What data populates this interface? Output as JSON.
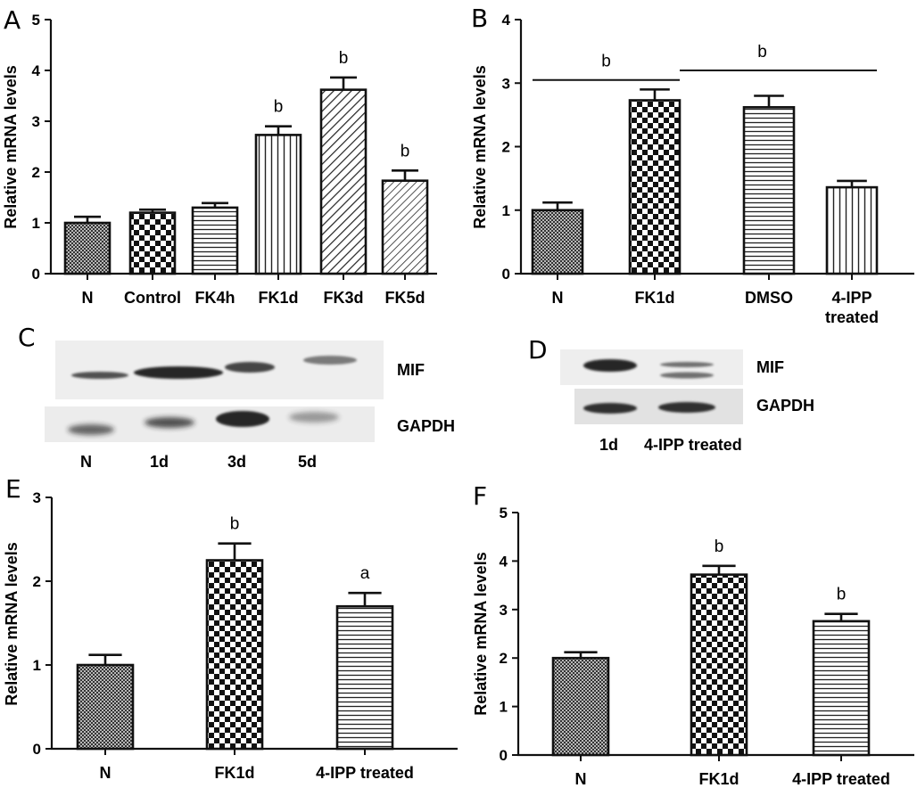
{
  "panels": {
    "A": {
      "letter": "A"
    },
    "B": {
      "letter": "B"
    },
    "C": {
      "letter": "C"
    },
    "D": {
      "letter": "D"
    },
    "E": {
      "letter": "E"
    },
    "F": {
      "letter": "F"
    }
  },
  "blots": {
    "C": {
      "rows": [
        "MIF",
        "GAPDH"
      ],
      "lanes": [
        "N",
        "1d",
        "3d",
        "5d"
      ]
    },
    "D": {
      "rows": [
        "MIF",
        "GAPDH"
      ],
      "lanes": [
        "1d",
        "4-IPP treated"
      ]
    }
  },
  "chart_data": [
    {
      "panel": "A",
      "type": "bar",
      "categories": [
        "N",
        "Control",
        "FK4h",
        "FK1d",
        "FK3d",
        "FK5d"
      ],
      "values": [
        1.0,
        1.2,
        1.3,
        2.73,
        3.62,
        1.83
      ],
      "errors": [
        0.12,
        0.06,
        0.09,
        0.17,
        0.24,
        0.2
      ],
      "annotations": [
        "",
        "",
        "",
        "b",
        "b",
        "b"
      ],
      "patterns": [
        "dots",
        "checker",
        "hlines",
        "vlines",
        "diag",
        "diag2"
      ],
      "ylabel": "Relative mRNA levels",
      "ylim": [
        0,
        5
      ],
      "yticks": [
        0,
        1,
        2,
        3,
        4,
        5
      ],
      "title": "",
      "xlabel": ""
    },
    {
      "panel": "B",
      "type": "bar",
      "categories": [
        "N",
        "FK1d",
        "DMSO",
        "4-IPP treated"
      ],
      "values": [
        1.0,
        2.73,
        2.62,
        1.36
      ],
      "errors": [
        0.12,
        0.17,
        0.18,
        0.1
      ],
      "annotations": [
        "",
        "",
        "",
        ""
      ],
      "patterns": [
        "dots",
        "checker",
        "hlines",
        "vlines"
      ],
      "comparisons": [
        {
          "from": 0,
          "to": 1,
          "y": 3.05,
          "label": "b"
        },
        {
          "from": 1,
          "to": 3,
          "y": 3.2,
          "label": "b"
        }
      ],
      "ylabel": "Relative mRNA levels",
      "ylim": [
        0,
        4
      ],
      "yticks": [
        0,
        1,
        2,
        3,
        4
      ],
      "title": "",
      "xlabel": ""
    },
    {
      "panel": "E",
      "type": "bar",
      "categories": [
        "N",
        "FK1d",
        "4-IPP treated"
      ],
      "values": [
        1.0,
        2.25,
        1.7
      ],
      "errors": [
        0.12,
        0.2,
        0.16
      ],
      "annotations": [
        "",
        "b",
        "a"
      ],
      "patterns": [
        "dots",
        "checker",
        "hlines"
      ],
      "ylabel": "Relative mRNA levels",
      "ylim": [
        0,
        3
      ],
      "yticks": [
        0,
        1,
        2,
        3
      ],
      "title": "",
      "xlabel": ""
    },
    {
      "panel": "F",
      "type": "bar",
      "categories": [
        "N",
        "FK1d",
        "4-IPP treated"
      ],
      "values": [
        2.0,
        3.72,
        2.76
      ],
      "errors": [
        0.12,
        0.18,
        0.15
      ],
      "annotations": [
        "",
        "b",
        "b"
      ],
      "patterns": [
        "dots",
        "checker",
        "hlines"
      ],
      "ylabel": "Relative mRNA levels",
      "ylim": [
        0,
        5
      ],
      "yticks": [
        0,
        1,
        2,
        3,
        4,
        5
      ],
      "title": "",
      "xlabel": ""
    }
  ]
}
